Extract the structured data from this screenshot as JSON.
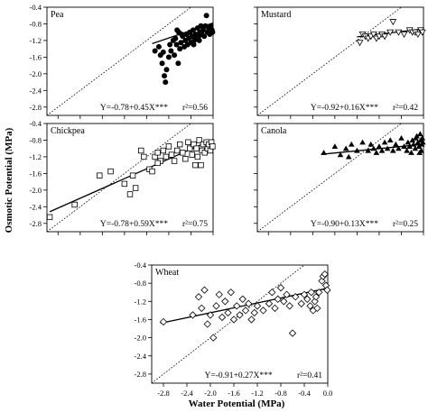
{
  "figure": {
    "ylabel": "Osmotic Potential (MPa)",
    "xlabel": "Water Potential (MPa)"
  },
  "chart_data": [
    {
      "type": "scatter",
      "title": "Pea",
      "marker": "filled-circle",
      "xlim": [
        -3.0,
        0.0
      ],
      "ylim": [
        -3.0,
        -0.4
      ],
      "x_ticks": [],
      "y_ticks": [
        "-0.4",
        "-0.8",
        "-1.2",
        "-1.6",
        "-2.0",
        "-2.4",
        "-2.8"
      ],
      "equation": "Y=-0.78+0.45X***",
      "r2_label": "r²=0.56",
      "fit": {
        "intercept": -0.78,
        "slope": 0.45,
        "x_range": [
          -1.1,
          0.0
        ]
      },
      "points": [
        [
          -1.05,
          -1.45
        ],
        [
          -0.98,
          -1.35
        ],
        [
          -0.95,
          -1.55
        ],
        [
          -0.92,
          -1.75
        ],
        [
          -0.9,
          -1.48
        ],
        [
          -0.88,
          -2.05
        ],
        [
          -0.86,
          -2.2
        ],
        [
          -0.84,
          -1.9
        ],
        [
          -0.8,
          -1.6
        ],
        [
          -0.78,
          -1.3
        ],
        [
          -0.76,
          -1.45
        ],
        [
          -0.72,
          -1.2
        ],
        [
          -0.7,
          -1.55
        ],
        [
          -0.68,
          -1.15
        ],
        [
          -0.65,
          -0.95
        ],
        [
          -0.63,
          -1.75
        ],
        [
          -0.6,
          -1.4
        ],
        [
          -0.58,
          -1.25
        ],
        [
          -0.55,
          -1.1
        ],
        [
          -0.52,
          -1.35
        ],
        [
          -0.5,
          -1.2
        ],
        [
          -0.48,
          -1.05
        ],
        [
          -0.46,
          -1.3
        ],
        [
          -0.44,
          -1.15
        ],
        [
          -0.42,
          -1.0
        ],
        [
          -0.4,
          -1.25
        ],
        [
          -0.38,
          -1.1
        ],
        [
          -0.36,
          -0.95
        ],
        [
          -0.34,
          -1.2
        ],
        [
          -0.32,
          -1.05
        ],
        [
          -0.3,
          -1.15
        ],
        [
          -0.28,
          -0.9
        ],
        [
          -0.26,
          -1.1
        ],
        [
          -0.24,
          -1.0
        ],
        [
          -0.22,
          -0.85
        ],
        [
          -0.2,
          -1.05
        ],
        [
          -0.18,
          -0.95
        ],
        [
          -0.16,
          -1.1
        ],
        [
          -0.14,
          -0.85
        ],
        [
          -0.12,
          -0.6
        ],
        [
          -0.1,
          -1.0
        ],
        [
          -0.08,
          -0.9
        ],
        [
          -0.06,
          -1.05
        ],
        [
          -0.04,
          -0.85
        ],
        [
          -0.02,
          -0.95
        ],
        [
          -0.01,
          -1.0
        ],
        [
          -0.66,
          -1.3
        ],
        [
          -0.57,
          -1.05
        ],
        [
          -0.62,
          -1.0
        ],
        [
          -0.35,
          -1.3
        ],
        [
          -0.25,
          -1.2
        ]
      ]
    },
    {
      "type": "scatter",
      "title": "Mustard",
      "marker": "open-triangle-down",
      "xlim": [
        -3.0,
        0.0
      ],
      "ylim": [
        -3.0,
        -0.4
      ],
      "x_ticks": [],
      "y_ticks": [],
      "equation": "Y=-0.92+0.16X***",
      "r2_label": "r²=0.42",
      "fit": {
        "intercept": -0.92,
        "slope": 0.16,
        "x_range": [
          -1.2,
          0.0
        ]
      },
      "points": [
        [
          -1.15,
          -1.25
        ],
        [
          -1.1,
          -1.05
        ],
        [
          -1.05,
          -1.1
        ],
        [
          -1.0,
          -1.15
        ],
        [
          -0.95,
          -1.1
        ],
        [
          -0.9,
          -1.05
        ],
        [
          -0.85,
          -1.15
        ],
        [
          -0.8,
          -1.1
        ],
        [
          -0.75,
          -1.05
        ],
        [
          -0.7,
          -1.1
        ],
        [
          -0.6,
          -1.0
        ],
        [
          -0.55,
          -0.75
        ],
        [
          -0.45,
          -1.0
        ],
        [
          -0.35,
          -1.05
        ],
        [
          -0.25,
          -0.95
        ],
        [
          -0.2,
          -1.0
        ],
        [
          -0.15,
          -1.0
        ],
        [
          -0.1,
          -1.05
        ],
        [
          -0.05,
          -0.95
        ],
        [
          -0.02,
          -1.0
        ]
      ]
    },
    {
      "type": "scatter",
      "title": "Chickpea",
      "marker": "open-square",
      "xlim": [
        -3.0,
        0.0
      ],
      "ylim": [
        -3.0,
        -0.4
      ],
      "x_ticks": [],
      "y_ticks": [
        "-0.4",
        "-0.8",
        "-1.2",
        "-1.6",
        "-2.0",
        "-2.4",
        "-2.8"
      ],
      "equation": "Y=-0.78+0.59X***",
      "r2_label": "r²=0.75",
      "fit": {
        "intercept": -0.78,
        "slope": 0.59,
        "x_range": [
          -2.95,
          0.0
        ]
      },
      "points": [
        [
          -2.95,
          -2.65
        ],
        [
          -2.5,
          -2.35
        ],
        [
          -2.05,
          -1.65
        ],
        [
          -1.85,
          -1.55
        ],
        [
          -1.6,
          -1.85
        ],
        [
          -1.5,
          -2.1
        ],
        [
          -1.45,
          -1.65
        ],
        [
          -1.4,
          -1.95
        ],
        [
          -1.3,
          -1.05
        ],
        [
          -1.25,
          -1.2
        ],
        [
          -1.15,
          -1.5
        ],
        [
          -1.1,
          -1.55
        ],
        [
          -1.05,
          -1.2
        ],
        [
          -1.0,
          -1.1
        ],
        [
          -0.95,
          -1.3
        ],
        [
          -0.9,
          -1.05
        ],
        [
          -0.85,
          -1.2
        ],
        [
          -0.8,
          -0.95
        ],
        [
          -0.75,
          -1.15
        ],
        [
          -0.7,
          -1.3
        ],
        [
          -0.65,
          -1.05
        ],
        [
          -0.6,
          -0.9
        ],
        [
          -0.55,
          -1.1
        ],
        [
          -0.5,
          -1.25
        ],
        [
          -0.45,
          -0.85
        ],
        [
          -0.42,
          -1.0
        ],
        [
          -0.38,
          -1.15
        ],
        [
          -0.35,
          -0.9
        ],
        [
          -0.32,
          -1.4
        ],
        [
          -0.3,
          -1.0
        ],
        [
          -0.28,
          -1.2
        ],
        [
          -0.25,
          -0.8
        ],
        [
          -0.22,
          -1.4
        ],
        [
          -0.2,
          -1.05
        ],
        [
          -0.18,
          -0.9
        ],
        [
          -0.15,
          -1.1
        ],
        [
          -0.12,
          -0.85
        ],
        [
          -0.1,
          -1.0
        ],
        [
          -0.08,
          -0.9
        ],
        [
          -0.05,
          -1.05
        ],
        [
          -0.03,
          -0.85
        ],
        [
          -0.01,
          -0.95
        ],
        [
          -1.0,
          -1.35
        ]
      ]
    },
    {
      "type": "scatter",
      "title": "Canola",
      "marker": "filled-triangle-up",
      "xlim": [
        -3.0,
        0.0
      ],
      "ylim": [
        -3.0,
        -0.4
      ],
      "x_ticks": [],
      "y_ticks": [],
      "equation": "Y=-0.90+0.13X***",
      "r2_label": "r²=0.25",
      "fit": {
        "intercept": -0.9,
        "slope": 0.13,
        "x_range": [
          -1.85,
          0.0
        ]
      },
      "points": [
        [
          -1.8,
          -1.1
        ],
        [
          -1.6,
          -0.95
        ],
        [
          -1.5,
          -1.15
        ],
        [
          -1.4,
          -1.0
        ],
        [
          -1.35,
          -1.2
        ],
        [
          -1.3,
          -0.9
        ],
        [
          -1.2,
          -1.05
        ],
        [
          -1.1,
          -0.85
        ],
        [
          -1.0,
          -1.05
        ],
        [
          -0.95,
          -0.9
        ],
        [
          -0.9,
          -1.0
        ],
        [
          -0.85,
          -1.1
        ],
        [
          -0.8,
          -0.95
        ],
        [
          -0.75,
          -1.05
        ],
        [
          -0.7,
          -0.85
        ],
        [
          -0.65,
          -1.0
        ],
        [
          -0.6,
          -0.8
        ],
        [
          -0.55,
          -1.05
        ],
        [
          -0.5,
          -0.9
        ],
        [
          -0.45,
          -1.0
        ],
        [
          -0.4,
          -0.75
        ],
        [
          -0.35,
          -0.95
        ],
        [
          -0.3,
          -1.05
        ],
        [
          -0.28,
          -0.85
        ],
        [
          -0.25,
          -0.95
        ],
        [
          -0.22,
          -1.1
        ],
        [
          -0.2,
          -0.8
        ],
        [
          -0.18,
          -0.9
        ],
        [
          -0.15,
          -1.0
        ],
        [
          -0.12,
          -0.7
        ],
        [
          -0.1,
          -0.85
        ],
        [
          -0.08,
          -0.95
        ],
        [
          -0.06,
          -0.65
        ],
        [
          -0.05,
          -0.8
        ],
        [
          -0.04,
          -1.05
        ],
        [
          -0.03,
          -0.9
        ],
        [
          -0.02,
          -0.75
        ],
        [
          -0.01,
          -0.85
        ],
        [
          -0.07,
          -1.1
        ],
        [
          -0.14,
          -0.75
        ]
      ]
    },
    {
      "type": "scatter",
      "title": "Wheat",
      "marker": "open-diamond",
      "xlim": [
        -3.0,
        0.0
      ],
      "ylim": [
        -3.0,
        -0.4
      ],
      "x_ticks": [
        "-2.8",
        "-2.4",
        "-2.0",
        "-1.6",
        "-1.2",
        "-0.8",
        "-0.4",
        "0.0"
      ],
      "y_ticks": [
        "-0.4",
        "-0.8",
        "-1.2",
        "-1.6",
        "-2.0",
        "-2.4",
        "-2.8"
      ],
      "equation": "Y=-0.91+0.27X***",
      "r2_label": "r²=0.41",
      "fit": {
        "intercept": -0.91,
        "slope": 0.27,
        "x_range": [
          -2.85,
          0.0
        ]
      },
      "points": [
        [
          -2.8,
          -1.65
        ],
        [
          -2.3,
          -1.5
        ],
        [
          -2.2,
          -1.1
        ],
        [
          -2.15,
          -1.35
        ],
        [
          -2.1,
          -0.95
        ],
        [
          -2.05,
          -1.7
        ],
        [
          -2.0,
          -1.5
        ],
        [
          -1.95,
          -2.0
        ],
        [
          -1.9,
          -1.3
        ],
        [
          -1.85,
          -1.05
        ],
        [
          -1.8,
          -1.55
        ],
        [
          -1.75,
          -1.2
        ],
        [
          -1.7,
          -1.45
        ],
        [
          -1.65,
          -1.0
        ],
        [
          -1.6,
          -1.6
        ],
        [
          -1.55,
          -1.3
        ],
        [
          -1.5,
          -1.5
        ],
        [
          -1.45,
          -1.15
        ],
        [
          -1.4,
          -1.4
        ],
        [
          -1.35,
          -1.25
        ],
        [
          -1.3,
          -1.6
        ],
        [
          -1.25,
          -1.45
        ],
        [
          -1.2,
          -1.3
        ],
        [
          -1.1,
          -1.4
        ],
        [
          -1.0,
          -1.25
        ],
        [
          -0.95,
          -1.0
        ],
        [
          -0.9,
          -1.35
        ],
        [
          -0.85,
          -1.15
        ],
        [
          -0.8,
          -0.9
        ],
        [
          -0.75,
          -1.2
        ],
        [
          -0.7,
          -1.05
        ],
        [
          -0.65,
          -1.3
        ],
        [
          -0.6,
          -1.9
        ],
        [
          -0.55,
          -1.1
        ],
        [
          -0.45,
          -1.25
        ],
        [
          -0.4,
          -1.05
        ],
        [
          -0.35,
          -1.15
        ],
        [
          -0.3,
          -1.3
        ],
        [
          -0.28,
          -1.0
        ],
        [
          -0.25,
          -1.4
        ],
        [
          -0.22,
          -1.2
        ],
        [
          -0.2,
          -1.1
        ],
        [
          -0.18,
          -1.35
        ],
        [
          -0.15,
          -1.0
        ],
        [
          -0.1,
          -0.75
        ],
        [
          -0.08,
          -0.65
        ],
        [
          -0.05,
          -0.6
        ],
        [
          -0.03,
          -0.85
        ],
        [
          -0.01,
          -0.95
        ]
      ]
    }
  ]
}
